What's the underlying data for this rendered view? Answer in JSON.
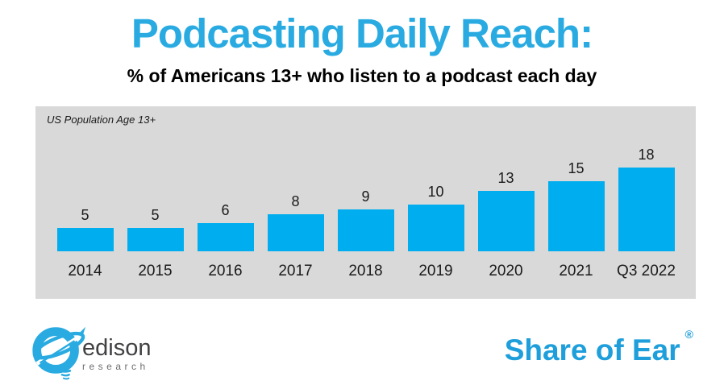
{
  "header": {
    "title": "Podcasting Daily Reach:",
    "subtitle": "% of Americans 13+ who listen to a podcast each day"
  },
  "chart_data": {
    "type": "bar",
    "title": "Podcasting Daily Reach:",
    "subtitle": "% of Americans 13+ who listen to a podcast each day",
    "annotation": "US Population Age 13+",
    "categories": [
      "2014",
      "2015",
      "2016",
      "2017",
      "2018",
      "2019",
      "2020",
      "2021",
      "Q3 2022"
    ],
    "values": [
      5,
      5,
      6,
      8,
      9,
      10,
      13,
      15,
      18
    ],
    "xlabel": "",
    "ylabel": "",
    "ylim": [
      0,
      20
    ],
    "grid": false,
    "legend": "none",
    "value_labels": true,
    "bar_color": "#00AEEF",
    "plot_background": "#D9D9D9"
  },
  "footer": {
    "logo": {
      "line1": "edison",
      "line2": "research"
    },
    "brand": "Share of Ear",
    "registered_mark": "®"
  },
  "colors": {
    "title_blue": "#29ABE2",
    "bar_blue": "#00AEEF",
    "panel_gray": "#D9D9D9",
    "brand_blue": "#1E9FDB",
    "logo_blue": "#29ABE2"
  }
}
